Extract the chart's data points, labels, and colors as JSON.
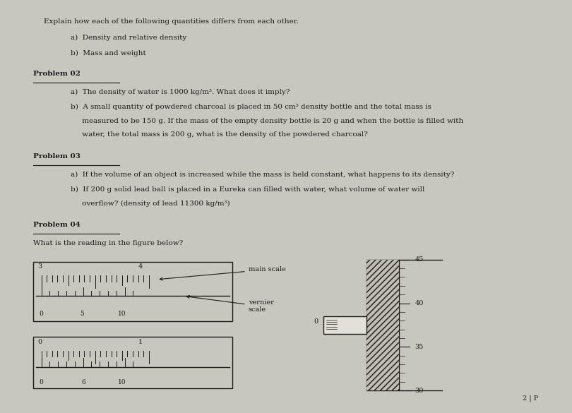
{
  "bg_color": "#c8c7bf",
  "paper_color": "#e2e0d8",
  "text_color": "#1a1a1a",
  "title_line": "Explain how each of the following quantities differs from each other.",
  "intro_items": [
    "a)  Density and relative density",
    "b)  Mass and weight"
  ],
  "prob02_title": "Problem 02",
  "prob02_a": "a)  The density of water is 1000 kg/m³. What does it imply?",
  "prob02_b_lines": [
    "b)  A small quantity of powdered charcoal is placed in 50 cm³ density bottle and the total mass is",
    "     measured to be 150 g. If the mass of the empty density bottle is 20 g and when the bottle is filled with",
    "     water, the total mass is 200 g, what is the density of the powdered charcoal?"
  ],
  "prob03_title": "Problem 03",
  "prob03_a": "a)  If the volume of an object is increased while the mass is held constant, what happens to its density?",
  "prob03_b_lines": [
    "b)  If 200 g solid lead ball is placed in a Eureka can filled with water, what volume of water will",
    "     overflow? (density of lead 11300 kg/m³)"
  ],
  "prob04_title": "Problem 04",
  "prob04_question": "What is the reading in the figure below?",
  "page_num": "2 | P"
}
